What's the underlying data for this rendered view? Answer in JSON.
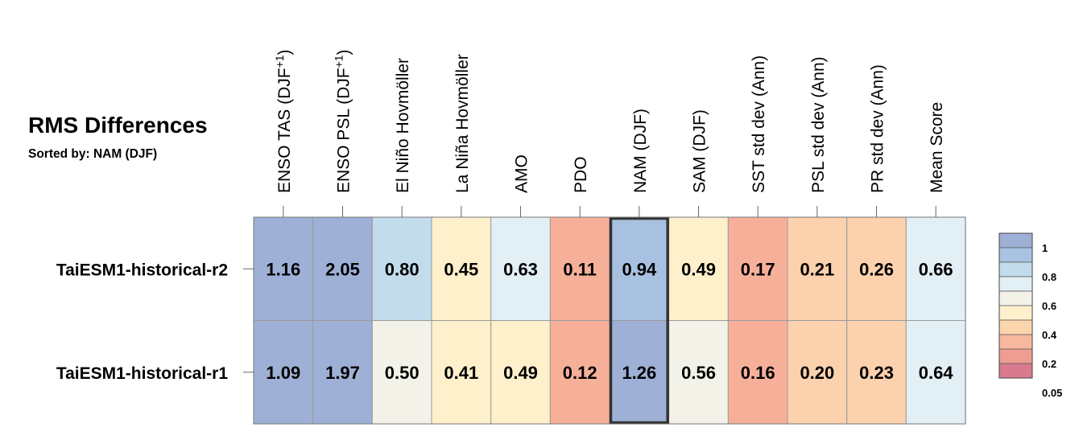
{
  "title": "RMS Differences",
  "subtitle": "Sorted by: NAM (DJF)",
  "chart_data": {
    "type": "heatmap",
    "columns": [
      {
        "label": "ENSO TAS (DJF",
        "sup": "+1",
        "close": ")"
      },
      {
        "label": "ENSO PSL (DJF",
        "sup": "+1",
        "close": ")"
      },
      {
        "label": "El Niño Hovmöller"
      },
      {
        "label": "La Niña Hovmöller"
      },
      {
        "label": "AMO"
      },
      {
        "label": "PDO"
      },
      {
        "label": "NAM (DJF)"
      },
      {
        "label": "SAM (DJF)"
      },
      {
        "label": "SST std dev (Ann)"
      },
      {
        "label": "PSL std dev (Ann)"
      },
      {
        "label": "PR std dev (Ann)"
      },
      {
        "label": "Mean Score"
      }
    ],
    "rows": [
      {
        "label": "TaiESM1-historical-r2",
        "values": [
          1.16,
          2.05,
          0.8,
          0.45,
          0.63,
          0.11,
          0.94,
          0.49,
          0.17,
          0.21,
          0.26,
          0.66
        ]
      },
      {
        "label": "TaiESM1-historical-r1",
        "values": [
          1.09,
          1.97,
          0.5,
          0.41,
          0.49,
          0.12,
          1.26,
          0.56,
          0.16,
          0.2,
          0.23,
          0.64
        ]
      }
    ],
    "highlighted_column": "NAM (DJF)",
    "colorbar": {
      "labels": [
        "1",
        "0.8",
        "0.6",
        "0.4",
        "0.2",
        "0.05"
      ],
      "colors": [
        "#9fb0d6",
        "#a9c4e2",
        "#c2dcec",
        "#e2eff4",
        "#f3f2e8",
        "#fdf0cb",
        "#fbd6ad",
        "#f6b9a0",
        "#ee9d93",
        "#d97a8e"
      ]
    },
    "cell_colors": [
      [
        "#9fb0d6",
        "#9fb0d6",
        "#c2dcec",
        "#fdf0cb",
        "#e2eff4",
        "#f6b09a",
        "#a9c1e0",
        "#fdf0cb",
        "#f6b09a",
        "#fbd1ae",
        "#fbd1ae",
        "#e2eff4"
      ],
      [
        "#9fb0d6",
        "#9fb0d6",
        "#f3f2e8",
        "#fdf0cb",
        "#fdf0cb",
        "#f6b09a",
        "#9fb0d6",
        "#f3f2e8",
        "#f6b09a",
        "#fbd1ae",
        "#fbd1ae",
        "#e2eff4"
      ]
    ]
  }
}
